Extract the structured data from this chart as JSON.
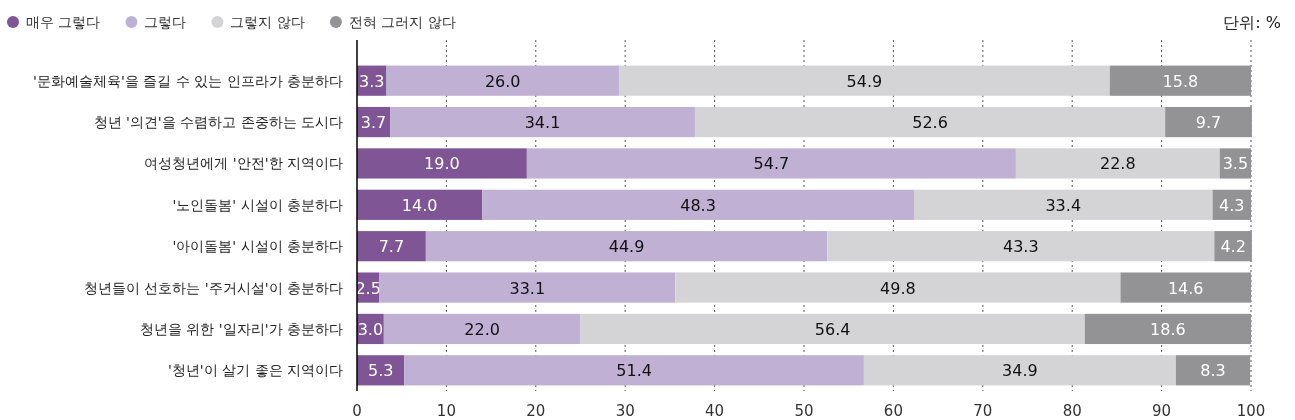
{
  "chart_data": {
    "type": "bar",
    "orientation": "horizontal",
    "stacked": true,
    "categories": [
      "'문화예술체육'을 즐길 수 있는 인프라가 충분하다",
      "청년 '의견'을 수렴하고 존중하는 도시다",
      "여성청년에게 '안전'한 지역이다",
      "'노인돌봄' 시설이 충분하다",
      "'아이돌봄' 시설이 충분하다",
      "청년들이 선호하는 '주거시설'이 충분하다",
      "청년을 위한 '일자리'가 충분하다",
      "'청년'이 살기 좋은 지역이다"
    ],
    "series": [
      {
        "name": "매우 그렇다",
        "color": "#7f5596",
        "values": [
          3.3,
          3.7,
          19.0,
          14.0,
          7.7,
          2.5,
          3.0,
          5.3
        ],
        "value_labels": [
          "3.3",
          "3.7",
          "19.0",
          "14.0",
          "7.7",
          "2.5",
          "3.0",
          "5.3"
        ]
      },
      {
        "name": "그렇다",
        "color": "#c0b0d4",
        "values": [
          26.0,
          34.1,
          54.7,
          48.3,
          44.9,
          33.1,
          22.0,
          51.4
        ],
        "value_labels": [
          "26.0",
          "34.1",
          "54.7",
          "48.3",
          "44.9",
          "33.1",
          "22.0",
          "51.4"
        ]
      },
      {
        "name": "그렇지 않다",
        "color": "#d4d4d6",
        "values": [
          54.9,
          52.6,
          22.8,
          33.4,
          43.3,
          49.8,
          56.4,
          34.9
        ],
        "value_labels": [
          "54.9",
          "52.6",
          "22.8",
          "33.4",
          "43.3",
          "49.8",
          "56.4",
          "34.9"
        ]
      },
      {
        "name": "전혀 그러지 않다",
        "color": "#939396",
        "values": [
          15.8,
          9.7,
          3.5,
          4.3,
          4.2,
          14.6,
          18.6,
          8.3
        ],
        "value_labels": [
          "15.8",
          "9.7",
          "3.5",
          "4.3",
          "4.2",
          "14.6",
          "18.6",
          "8.3"
        ]
      }
    ],
    "xlim": [
      0,
      100
    ],
    "xticks": [
      0,
      10,
      20,
      30,
      40,
      50,
      60,
      70,
      80,
      90,
      100
    ],
    "grid": "x",
    "legend": "top left",
    "annotations": [
      "단위: %"
    ]
  }
}
